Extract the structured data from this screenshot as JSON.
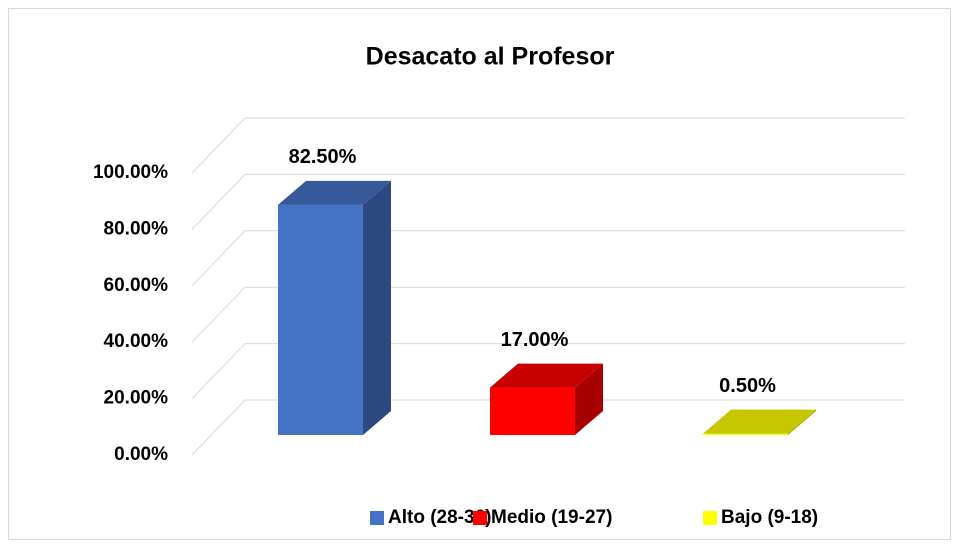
{
  "chart_data": {
    "type": "bar3d",
    "title": "Desacato al Profesor",
    "categories": [
      "Alto (28-36)",
      "Medio (19-27)",
      "Bajo (9-18)"
    ],
    "values": [
      82.5,
      17,
      0.5
    ],
    "value_labels": [
      "82.50%",
      "17.00%",
      "0.50%"
    ],
    "colors": [
      "#4472c4",
      "#ff0000",
      "#ffff00"
    ],
    "ylim": [
      0,
      100
    ],
    "yticks": [
      {
        "value": 0,
        "label": "0.00%"
      },
      {
        "value": 20,
        "label": "20.00%"
      },
      {
        "value": 40,
        "label": "40.00%"
      },
      {
        "value": 60,
        "label": "60.00%"
      },
      {
        "value": 80,
        "label": "80.00%"
      },
      {
        "value": 100,
        "label": "100.00%"
      }
    ],
    "grid": true,
    "legend": "bottom"
  }
}
